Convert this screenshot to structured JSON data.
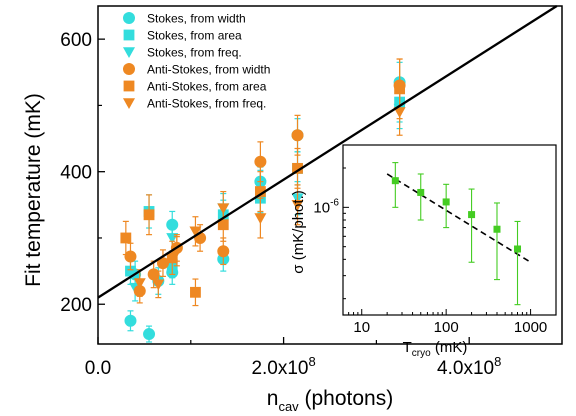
{
  "chart_data": [
    {
      "type": "scatter",
      "xlabel_main": "n",
      "xlabel_sub": "cav",
      "xlabel_rest": " (photons)",
      "ylabel": "Fit temperature (mK)",
      "xlim": [
        0,
        500000000
      ],
      "ylim": [
        140,
        650
      ],
      "xticks": [
        {
          "value": 0,
          "label": "0.0"
        },
        {
          "value": 200000000,
          "label_base": "2.0x10",
          "label_exp": "8"
        },
        {
          "value": 400000000,
          "label_base": "4.0x10",
          "label_exp": "8"
        }
      ],
      "yticks": [
        {
          "value": 200,
          "label": "200"
        },
        {
          "value": 400,
          "label": "400"
        },
        {
          "value": 600,
          "label": "600"
        }
      ],
      "colors": {
        "stokes": "#33dddd",
        "antistokes": "#ee8822",
        "fit": "#000000"
      },
      "fit_line": {
        "x": [
          0,
          500000000
        ],
        "y": [
          210,
          655
        ]
      },
      "series": [
        {
          "name": "Stokes, from width",
          "marker": "circle",
          "color": "#33dddd",
          "points": [
            [
              35000000,
              175,
              15
            ],
            [
              40000000,
              245,
              20
            ],
            [
              55000000,
              155,
              12
            ],
            [
              65000000,
              235,
              20
            ],
            [
              80000000,
              320,
              20
            ],
            [
              80000000,
              248,
              18
            ],
            [
              135000000,
              268,
              18
            ],
            [
              175000000,
              385,
              22
            ],
            [
              215000000,
              455,
              25
            ],
            [
              325000000,
              535,
              30
            ]
          ]
        },
        {
          "name": "Stokes, from area",
          "marker": "square",
          "color": "#33dddd",
          "points": [
            [
              35000000,
              250,
              20
            ],
            [
              55000000,
              340,
              25
            ],
            [
              80000000,
              260,
              20
            ],
            [
              135000000,
              335,
              22
            ],
            [
              175000000,
              360,
              22
            ],
            [
              215000000,
              405,
              25
            ],
            [
              325000000,
              505,
              30
            ]
          ]
        },
        {
          "name": "Stokes, from freq.",
          "marker": "triangle",
          "color": "#33dddd",
          "points": [
            [
              40000000,
              225,
              20
            ],
            [
              80000000,
              300,
              20
            ],
            [
              135000000,
              345,
              22
            ],
            [
              175000000,
              380,
              22
            ],
            [
              215000000,
              360,
              25
            ],
            [
              325000000,
              495,
              30
            ]
          ]
        },
        {
          "name": "Anti-Stokes, from width",
          "marker": "circle",
          "color": "#ee8822",
          "points": [
            [
              35000000,
              272,
              20
            ],
            [
              45000000,
              220,
              18
            ],
            [
              60000000,
              245,
              20
            ],
            [
              70000000,
              262,
              20
            ],
            [
              85000000,
              285,
              20
            ],
            [
              110000000,
              300,
              20
            ],
            [
              135000000,
              280,
              20
            ],
            [
              175000000,
              415,
              30
            ],
            [
              215000000,
              455,
              30
            ],
            [
              325000000,
              530,
              40
            ]
          ]
        },
        {
          "name": "Anti-Stokes, from area",
          "marker": "square",
          "color": "#ee8822",
          "points": [
            [
              30000000,
              300,
              25
            ],
            [
              55000000,
              335,
              30
            ],
            [
              80000000,
              270,
              25
            ],
            [
              105000000,
              218,
              20
            ],
            [
              135000000,
              320,
              25
            ],
            [
              175000000,
              370,
              30
            ],
            [
              215000000,
              405,
              30
            ],
            [
              325000000,
              525,
              45
            ]
          ]
        },
        {
          "name": "Anti-Stokes, from freq.",
          "marker": "triangle",
          "color": "#ee8822",
          "points": [
            [
              45000000,
              232,
              20
            ],
            [
              65000000,
              230,
              20
            ],
            [
              85000000,
              280,
              22
            ],
            [
              105000000,
              310,
              22
            ],
            [
              135000000,
              345,
              25
            ],
            [
              175000000,
              330,
              30
            ],
            [
              215000000,
              350,
              30
            ],
            [
              325000000,
              490,
              35
            ]
          ]
        }
      ],
      "legend_position": "top-left"
    },
    {
      "type": "scatter",
      "xlabel_main": "T",
      "xlabel_sub": "cryo",
      "xlabel_rest": " (mK)",
      "ylabel": "σ (mK/phot.)",
      "xscale": "log",
      "yscale": "log",
      "xlim": [
        6,
        2000
      ],
      "ylim": [
        1.5e-07,
        3e-06
      ],
      "xticks": [
        {
          "value": 10,
          "label": "10"
        },
        {
          "value": 100,
          "label": "100"
        },
        {
          "value": 1000,
          "label": "1000"
        }
      ],
      "yticks": [
        {
          "value": 1e-06,
          "label_base": "10",
          "label_exp": "-6"
        }
      ],
      "series": [
        {
          "name": "",
          "marker": "square",
          "color": "#44cc22",
          "points": [
            [
              25,
              1.6e-06,
              6e-07
            ],
            [
              50,
              1.3e-06,
              5e-07
            ],
            [
              100,
              1.1e-06,
              4e-07
            ],
            [
              200,
              8.8e-07,
              5e-07
            ],
            [
              400,
              6.8e-07,
              4e-07
            ],
            [
              700,
              4.8e-07,
              3e-07
            ]
          ]
        }
      ],
      "fit_line": {
        "x": [
          20,
          1000
        ],
        "y": [
          1.8e-06,
          3.8e-07
        ]
      }
    }
  ]
}
